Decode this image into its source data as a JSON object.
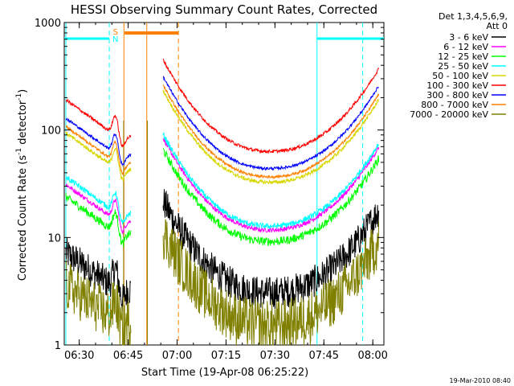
{
  "chart_data": {
    "type": "line",
    "title": "HESSI Observing Summary Count Rates, Corrected",
    "xlabel": "Start Time (19-Apr-08 06:25:22)",
    "ylabel_main": "Corrected Count Rate (s",
    "ylabel_sup1": "-1",
    "ylabel_mid": " detector",
    "ylabel_sup2": "-1",
    "ylabel_end": ")",
    "y_scale": "log",
    "ylim": [
      1,
      1000
    ],
    "xlim_minutes": [
      0,
      98
    ],
    "x_ticks": [
      {
        "t": 4.6,
        "label": "06:30"
      },
      {
        "t": 19.6,
        "label": "06:45"
      },
      {
        "t": 34.6,
        "label": "07:00"
      },
      {
        "t": 49.6,
        "label": "07:15"
      },
      {
        "t": 64.6,
        "label": "07:30"
      },
      {
        "t": 79.6,
        "label": "07:45"
      },
      {
        "t": 94.6,
        "label": "08:00"
      }
    ],
    "y_ticks": [
      {
        "v": 1,
        "label": "1"
      },
      {
        "v": 10,
        "label": "10"
      },
      {
        "v": 100,
        "label": "100"
      },
      {
        "v": 1000,
        "label": "1000"
      }
    ],
    "legend_header": [
      "Det 1,3,4,5,6,9,",
      "Att 0"
    ],
    "series": [
      {
        "name": "3 - 6 keV",
        "color": "#000000",
        "min": 3.0,
        "bump": 0.0,
        "noise": 0.35,
        "floor": 1.0
      },
      {
        "name": "6 - 12 keV",
        "color": "#ff00ff",
        "min": 11.5,
        "bump": 0.12,
        "noise": 0.05,
        "floor": 0
      },
      {
        "name": "12 - 25 keV",
        "color": "#00ff00",
        "min": 9.0,
        "bump": 0.1,
        "noise": 0.09,
        "floor": 0
      },
      {
        "name": "25 - 50 keV",
        "color": "#00ffff",
        "min": 12.5,
        "bump": 0.2,
        "noise": 0.06,
        "floor": 0
      },
      {
        "name": "50 - 100 keV",
        "color": "#d7d700",
        "min": 32.0,
        "bump": 0.2,
        "noise": 0.04,
        "floor": 0
      },
      {
        "name": "100 - 300 keV",
        "color": "#ff0000",
        "min": 62.0,
        "bump": 0.25,
        "noise": 0.035,
        "floor": 0
      },
      {
        "name": "300 - 800 keV",
        "color": "#0000ff",
        "min": 43.0,
        "bump": 0.22,
        "noise": 0.03,
        "floor": 0
      },
      {
        "name": "800 - 7000 keV",
        "color": "#ff8000",
        "min": 36.0,
        "bump": 0.22,
        "noise": 0.03,
        "floor": 0
      },
      {
        "name": "7000 - 20000 keV",
        "color": "#808000",
        "min": 1.5,
        "bump": 0.0,
        "noise": 0.55,
        "floor": 1.0
      }
    ],
    "segments": [
      [
        0.5,
        20.5
      ],
      [
        30.3,
        96.5
      ]
    ],
    "markers": {
      "S_label": "S",
      "N_label": "N",
      "S_color": "#ff8000",
      "N_color": "#00ffff"
    },
    "footer_date": "19-Mar-2010 08:40"
  }
}
